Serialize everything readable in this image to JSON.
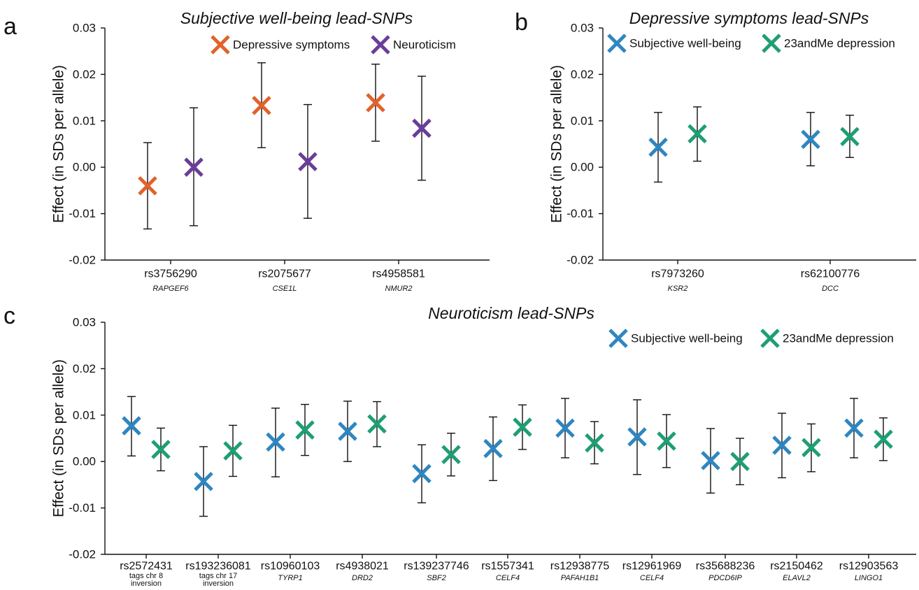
{
  "chart_data": [
    {
      "id": "a",
      "panel_label": "a",
      "type": "scatter",
      "title": "Subjective well-being lead-SNPs",
      "ylabel": "Effect (in SDs per allele)",
      "ylim": [
        -0.02,
        0.03
      ],
      "yticks": [
        "-0.02",
        "-0.01",
        "0.00",
        "0.01",
        "0.02",
        "0.03"
      ],
      "categories": [
        "rs3756290",
        "rs2075677",
        "rs4958581"
      ],
      "genes": [
        "RAPGEF6",
        "CSE1L",
        "NMUR2"
      ],
      "legend_position": "top-right",
      "series": [
        {
          "name": "Depressive symptoms",
          "color": "#E1622A",
          "values": [
            -0.004,
            0.0133,
            0.0139
          ],
          "ci_low": [
            -0.0133,
            0.0042,
            0.0056
          ],
          "ci_high": [
            0.0053,
            0.0225,
            0.0222
          ]
        },
        {
          "name": "Neuroticism",
          "color": "#6A3D9A",
          "values": [
            0.0,
            0.0012,
            0.0084
          ],
          "ci_low": [
            -0.0126,
            -0.011,
            -0.0028
          ],
          "ci_high": [
            0.0128,
            0.0135,
            0.0196
          ]
        }
      ]
    },
    {
      "id": "b",
      "panel_label": "b",
      "type": "scatter",
      "title": "Depressive symptoms lead-SNPs",
      "ylabel": "Effect (in SDs per allele)",
      "ylim": [
        -0.02,
        0.03
      ],
      "yticks": [
        "-0.02",
        "-0.01",
        "0.00",
        "0.01",
        "0.02",
        "0.03"
      ],
      "categories": [
        "rs7973260",
        "rs62100776"
      ],
      "genes": [
        "KSR2",
        "DCC"
      ],
      "legend_position": "top",
      "series": [
        {
          "name": "Subjective well-being",
          "color": "#2E86C1",
          "values": [
            0.0043,
            0.006
          ],
          "ci_low": [
            -0.0032,
            0.0003
          ],
          "ci_high": [
            0.0118,
            0.0118
          ]
        },
        {
          "name": "23andMe depression",
          "color": "#1E9E74",
          "values": [
            0.0072,
            0.0066
          ],
          "ci_low": [
            0.0013,
            0.0021
          ],
          "ci_high": [
            0.013,
            0.0112
          ]
        }
      ]
    },
    {
      "id": "c",
      "panel_label": "c",
      "type": "scatter",
      "title": "Neuroticism lead-SNPs",
      "ylabel": "Effect (in SDs per allele)",
      "ylim": [
        -0.02,
        0.03
      ],
      "yticks": [
        "-0.02",
        "-0.01",
        "0.00",
        "0.01",
        "0.02",
        "0.03"
      ],
      "categories": [
        "rs2572431",
        "rs193236081",
        "rs10960103",
        "rs4938021",
        "rs139237746",
        "rs1557341",
        "rs12938775",
        "rs12961969",
        "rs35688236",
        "rs2150462",
        "rs12903563"
      ],
      "genes": [
        [
          "tags chr 8",
          "inversion"
        ],
        [
          "tags chr 17",
          "inversion"
        ],
        "TYRP1",
        "DRD2",
        "SBF2",
        "CELF4",
        "PAFAH1B1",
        "CELF4",
        "PDCD6IP",
        "ELAVL2",
        "LINGO1"
      ],
      "legend_position": "top-right",
      "series": [
        {
          "name": "Subjective well-being",
          "color": "#2E86C1",
          "values": [
            0.0077,
            -0.0043,
            0.0042,
            0.0065,
            -0.0026,
            0.0028,
            0.0072,
            0.0053,
            0.0002,
            0.0035,
            0.0072
          ],
          "ci_low": [
            0.0012,
            -0.0118,
            -0.0033,
            0.0,
            -0.0089,
            -0.0041,
            0.0008,
            -0.0028,
            -0.0068,
            -0.0035,
            0.0008
          ],
          "ci_high": [
            0.014,
            0.0032,
            0.0115,
            0.013,
            0.0036,
            0.0096,
            0.0136,
            0.0133,
            0.0071,
            0.0104,
            0.0136
          ]
        },
        {
          "name": "23andMe depression",
          "color": "#1E9E74",
          "values": [
            0.0026,
            0.0023,
            0.0068,
            0.0081,
            0.0015,
            0.0074,
            0.004,
            0.0044,
            0.0,
            0.003,
            0.0048
          ],
          "ci_low": [
            -0.002,
            -0.0032,
            0.0013,
            0.0032,
            -0.0031,
            0.0026,
            -0.0005,
            -0.0013,
            -0.005,
            -0.0022,
            0.0002
          ],
          "ci_high": [
            0.0072,
            0.0078,
            0.0123,
            0.0129,
            0.0061,
            0.0122,
            0.0086,
            0.0101,
            0.005,
            0.0081,
            0.0094
          ]
        }
      ]
    }
  ]
}
